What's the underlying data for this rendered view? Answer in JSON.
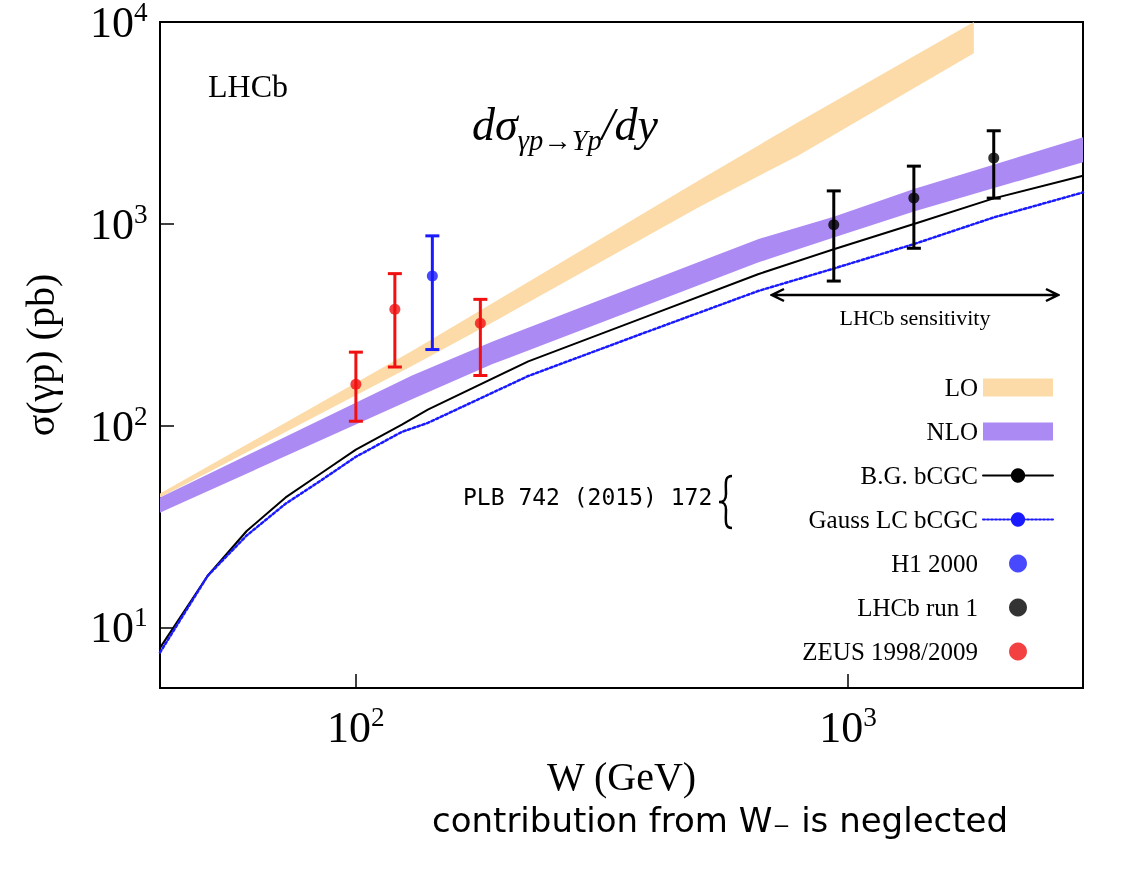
{
  "chart_data": {
    "type": "line",
    "xlabel": "W (GeV)",
    "ylabel": "σ(γp) (pb)",
    "log": "xy",
    "xlim": [
      40,
      3000
    ],
    "xticks": [
      {
        "value": 100,
        "label": "10$^{2}$"
      },
      {
        "value": 1000,
        "label": "10$^{3}$"
      }
    ],
    "ylim": [
      5,
      10000
    ],
    "yticks": [
      {
        "value": 10,
        "label": "10$^{1}$"
      },
      {
        "value": 100,
        "label": "10$^{2}$"
      },
      {
        "value": 1000,
        "label": "10$^{3}$"
      },
      {
        "value": 10000,
        "label": "10$^{4}$"
      }
    ],
    "legend": "bottom right",
    "series": [
      {
        "name": "LO",
        "type": "area",
        "color": "#fcdba8",
        "x": [
          40,
          130,
          189,
          496,
          791,
          1800
        ],
        "values": [
          null,
          null,
          null,
          null,
          null,
          null
        ],
        "lower": [
          44,
          197,
          323,
          1205,
          2175,
          7000
        ],
        "upper": [
          46,
          234,
          402,
          1634,
          3185,
          10000
        ]
      },
      {
        "name": "NLO",
        "type": "area",
        "color": "#ac8af4",
        "x": [
          40,
          130,
          189,
          656,
          935,
          1360,
          3000
        ],
        "values": [
          null,
          null,
          null,
          null,
          null,
          null,
          null
        ],
        "lower": [
          37,
          135,
          201,
          643,
          855,
          1151,
          2020
        ],
        "upper": [
          44,
          177,
          260,
          839,
          1082,
          1486,
          2685
        ]
      },
      {
        "name": "B.G. bCGC",
        "color": "#000000",
        "line_style": "solid",
        "marker": "none",
        "x": [
          40,
          50,
          60,
          72,
          85,
          100,
          124,
          140,
          224,
          375,
          656,
          935,
          1360,
          1976,
          3000
        ],
        "values": [
          7.9,
          18,
          30,
          44,
          58,
          76,
          101,
          120,
          208,
          335,
          562,
          748,
          998,
          1336,
          1730
        ]
      },
      {
        "name": "Gauss LC bCGC",
        "color": "#1a1aff",
        "line_style": "dotted",
        "marker": "none",
        "x": [
          40,
          50,
          60,
          72,
          85,
          100,
          124,
          140,
          224,
          375,
          656,
          935,
          1360,
          1976,
          3000
        ],
        "values": [
          7.5,
          18,
          28.5,
          41,
          53.5,
          70,
          93,
          103,
          176,
          281,
          464,
          600,
          793,
          1075,
          1430
        ]
      },
      {
        "name": "H1 2000",
        "type": "scatter",
        "color": "#1a1aff",
        "marker": "circle",
        "x": [
          143
        ],
        "values": [
          551
        ],
        "errors": [
          [
            238,
            871
          ]
        ]
      },
      {
        "name": "LHCb run 1",
        "type": "scatter",
        "color": "#000000",
        "marker": "circle",
        "x": [
          935,
          1360,
          1976
        ],
        "values": [
          988,
          1340,
          2120
        ],
        "errors": [
          [
            520,
            1455
          ],
          [
            756,
            1930
          ],
          [
            1340,
            2890
          ]
        ]
      },
      {
        "name": "ZEUS 1998/2009",
        "type": "scatter",
        "color": "#f01010",
        "marker": "circle",
        "x": [
          100,
          120,
          179
        ],
        "values": [
          160,
          377,
          321
        ],
        "errors": [
          [
            105,
            231
          ],
          [
            195,
            566
          ],
          [
            177,
            422
          ]
        ]
      }
    ],
    "annotations": [
      "LHCb",
      "dσ$_{γp→Υp}$/dy",
      "LHCb sensitivity",
      "PLB 742 (2015) 172",
      "contribution from W₋ is neglected"
    ]
  }
}
